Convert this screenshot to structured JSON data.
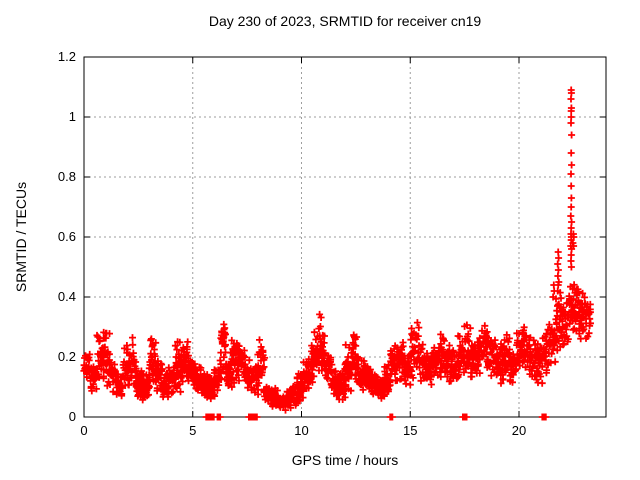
{
  "chart_data": {
    "type": "scatter",
    "title": "Day 230 of 2023, SRMTID for receiver cn19",
    "xlabel": "GPS time / hours",
    "ylabel": "SRMTID / TECUs",
    "series_name": "SRMTID",
    "xlim": [
      0,
      24
    ],
    "ylim": [
      0,
      1.2
    ],
    "xticks": {
      "values": [
        0,
        5,
        10,
        15,
        20
      ],
      "labels": [
        "0",
        "5",
        "10",
        "15",
        "20"
      ]
    },
    "yticks": {
      "values": [
        0,
        0.2,
        0.4,
        0.6,
        0.8,
        1,
        1.2
      ],
      "labels": [
        "0",
        "0.2",
        "0.4",
        "0.6",
        "0.8",
        "1",
        "1.2"
      ]
    },
    "grid": true,
    "legend": "none",
    "marker": {
      "shape": "plus",
      "color": "#ff0000",
      "size": 7,
      "stroke_width": 1.8
    },
    "colors": {
      "axis": "#000000",
      "grid": "#9e9e9e",
      "background": "#ffffff"
    },
    "generation": {
      "seed": 230,
      "epochs_per_hour": 30,
      "points_per_epoch_min": 2,
      "points_per_epoch_max": 4,
      "x_jitter": 0.008
    },
    "band_envelope": [
      [
        0.0,
        0.3,
        0.1,
        0.22
      ],
      [
        0.3,
        0.6,
        0.07,
        0.18
      ],
      [
        0.6,
        0.9,
        0.1,
        0.3
      ],
      [
        0.9,
        1.2,
        0.1,
        0.31
      ],
      [
        1.2,
        1.5,
        0.08,
        0.2
      ],
      [
        1.5,
        1.8,
        0.05,
        0.15
      ],
      [
        1.8,
        2.1,
        0.08,
        0.25
      ],
      [
        2.1,
        2.4,
        0.09,
        0.28
      ],
      [
        2.4,
        2.7,
        0.06,
        0.16
      ],
      [
        2.7,
        3.0,
        0.05,
        0.15
      ],
      [
        3.0,
        3.3,
        0.08,
        0.3
      ],
      [
        3.3,
        3.6,
        0.08,
        0.2
      ],
      [
        3.6,
        3.9,
        0.05,
        0.15
      ],
      [
        3.9,
        4.2,
        0.07,
        0.18
      ],
      [
        4.2,
        4.5,
        0.07,
        0.27
      ],
      [
        4.5,
        4.8,
        0.08,
        0.28
      ],
      [
        4.8,
        5.1,
        0.1,
        0.22
      ],
      [
        5.1,
        5.4,
        0.08,
        0.18
      ],
      [
        5.4,
        5.7,
        0.06,
        0.16
      ],
      [
        5.7,
        6.0,
        0.05,
        0.15
      ],
      [
        6.0,
        6.3,
        0.08,
        0.2
      ],
      [
        6.3,
        6.5,
        0.1,
        0.35
      ],
      [
        6.5,
        6.8,
        0.08,
        0.22
      ],
      [
        6.8,
        7.1,
        0.1,
        0.28
      ],
      [
        7.1,
        7.4,
        0.1,
        0.25
      ],
      [
        7.4,
        7.7,
        0.08,
        0.2
      ],
      [
        7.7,
        8.0,
        0.06,
        0.18
      ],
      [
        8.0,
        8.3,
        0.05,
        0.27
      ],
      [
        8.3,
        8.6,
        0.04,
        0.12
      ],
      [
        8.6,
        8.9,
        0.03,
        0.1
      ],
      [
        8.9,
        9.2,
        0.02,
        0.08
      ],
      [
        9.2,
        9.5,
        0.02,
        0.1
      ],
      [
        9.5,
        9.8,
        0.03,
        0.12
      ],
      [
        9.8,
        10.1,
        0.05,
        0.15
      ],
      [
        10.1,
        10.4,
        0.08,
        0.2
      ],
      [
        10.4,
        10.6,
        0.1,
        0.25
      ],
      [
        10.6,
        10.9,
        0.12,
        0.36
      ],
      [
        10.9,
        11.1,
        0.12,
        0.3
      ],
      [
        11.1,
        11.4,
        0.1,
        0.22
      ],
      [
        11.4,
        11.7,
        0.06,
        0.16
      ],
      [
        11.7,
        12.0,
        0.05,
        0.15
      ],
      [
        12.0,
        12.3,
        0.08,
        0.25
      ],
      [
        12.3,
        12.6,
        0.1,
        0.28
      ],
      [
        12.6,
        12.9,
        0.08,
        0.2
      ],
      [
        12.9,
        13.2,
        0.08,
        0.18
      ],
      [
        13.2,
        13.5,
        0.06,
        0.16
      ],
      [
        13.5,
        13.8,
        0.05,
        0.14
      ],
      [
        13.8,
        14.1,
        0.06,
        0.18
      ],
      [
        14.1,
        14.4,
        0.1,
        0.25
      ],
      [
        14.4,
        14.7,
        0.12,
        0.28
      ],
      [
        14.7,
        15.0,
        0.1,
        0.22
      ],
      [
        15.0,
        15.4,
        0.12,
        0.34
      ],
      [
        15.4,
        15.7,
        0.1,
        0.28
      ],
      [
        15.7,
        16.0,
        0.1,
        0.22
      ],
      [
        16.0,
        16.3,
        0.12,
        0.26
      ],
      [
        16.3,
        16.6,
        0.12,
        0.3
      ],
      [
        16.6,
        16.9,
        0.1,
        0.25
      ],
      [
        16.9,
        17.2,
        0.1,
        0.24
      ],
      [
        17.2,
        17.5,
        0.12,
        0.3
      ],
      [
        17.5,
        17.8,
        0.12,
        0.32
      ],
      [
        17.8,
        18.1,
        0.1,
        0.26
      ],
      [
        18.1,
        18.4,
        0.12,
        0.3
      ],
      [
        18.4,
        18.7,
        0.14,
        0.33
      ],
      [
        18.7,
        19.0,
        0.12,
        0.28
      ],
      [
        19.0,
        19.3,
        0.1,
        0.26
      ],
      [
        19.3,
        19.6,
        0.12,
        0.28
      ],
      [
        19.6,
        19.9,
        0.1,
        0.24
      ],
      [
        19.9,
        20.2,
        0.14,
        0.3
      ],
      [
        20.2,
        20.5,
        0.15,
        0.32
      ],
      [
        20.5,
        20.8,
        0.12,
        0.28
      ],
      [
        20.8,
        21.1,
        0.1,
        0.26
      ],
      [
        21.1,
        21.4,
        0.14,
        0.32
      ],
      [
        21.4,
        21.7,
        0.16,
        0.38
      ],
      [
        21.7,
        22.0,
        0.2,
        0.45
      ],
      [
        22.0,
        22.3,
        0.22,
        0.42
      ],
      [
        22.3,
        22.6,
        0.25,
        0.48
      ],
      [
        22.6,
        22.95,
        0.25,
        0.44
      ],
      [
        22.95,
        23.3,
        0.26,
        0.4
      ]
    ],
    "outlier_points": [
      [
        22.4,
        1.09
      ],
      [
        22.41,
        1.08
      ],
      [
        22.39,
        1.06
      ],
      [
        22.41,
        1.03
      ],
      [
        22.4,
        1.02
      ],
      [
        22.4,
        1.0
      ],
      [
        22.39,
        0.98
      ],
      [
        22.42,
        0.94
      ],
      [
        22.4,
        0.88
      ],
      [
        22.42,
        0.84
      ],
      [
        22.39,
        0.81
      ],
      [
        22.4,
        0.77
      ],
      [
        22.41,
        0.73
      ],
      [
        22.4,
        0.7
      ],
      [
        22.38,
        0.67
      ],
      [
        22.42,
        0.65
      ],
      [
        22.4,
        0.63
      ],
      [
        22.39,
        0.61
      ],
      [
        22.41,
        0.6
      ],
      [
        22.4,
        0.59
      ],
      [
        22.38,
        0.57
      ],
      [
        22.42,
        0.56
      ],
      [
        22.4,
        0.54
      ],
      [
        22.39,
        0.52
      ],
      [
        22.41,
        0.5
      ],
      [
        21.8,
        0.55
      ],
      [
        21.82,
        0.53
      ],
      [
        21.78,
        0.51
      ],
      [
        21.81,
        0.49
      ],
      [
        21.79,
        0.47
      ],
      [
        21.83,
        0.45
      ],
      [
        21.8,
        0.44
      ],
      [
        21.78,
        0.42
      ],
      [
        21.6,
        0.44
      ],
      [
        21.62,
        0.42
      ],
      [
        21.57,
        0.4
      ],
      [
        22.5,
        0.61
      ],
      [
        22.52,
        0.6
      ],
      [
        22.48,
        0.58
      ],
      [
        22.51,
        0.57
      ]
    ],
    "zero_runs": [
      [
        5.62,
        5.78,
        8
      ],
      [
        5.82,
        5.97,
        8
      ],
      [
        6.14,
        6.26,
        4
      ],
      [
        7.58,
        7.95,
        18
      ],
      [
        14.08,
        14.18,
        3
      ],
      [
        17.42,
        17.47,
        2
      ],
      [
        17.54,
        17.59,
        2
      ],
      [
        21.07,
        21.12,
        2
      ],
      [
        21.18,
        21.23,
        2
      ]
    ]
  }
}
